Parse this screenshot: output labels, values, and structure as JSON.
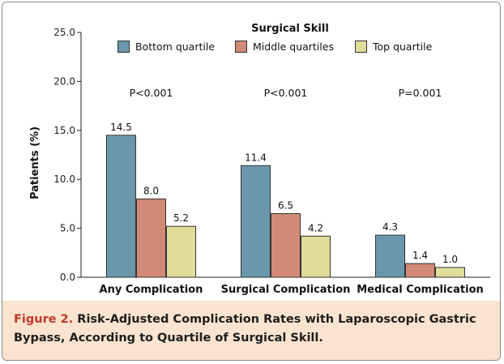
{
  "chart_data": {
    "type": "bar",
    "ylabel": "Patients (%)",
    "ylim": [
      0,
      25
    ],
    "yticks": [
      "0.0",
      "5.0",
      "10.0",
      "15.0",
      "20.0",
      "25.0"
    ],
    "ytick_values": [
      0,
      5,
      10,
      15,
      20,
      25
    ],
    "categories": [
      "Any Complication",
      "Surgical Complication",
      "Medical Complication"
    ],
    "p_values": [
      "P<0.001",
      "P<0.001",
      "P=0.001"
    ],
    "legend_title": "Surgical Skill",
    "legend_position": "top-center",
    "grid": false,
    "series": [
      {
        "name": "Bottom quartile",
        "color": "#6a97ab",
        "values": [
          14.5,
          11.4,
          4.3
        ],
        "labels": [
          "14.5",
          "11.4",
          "4.3"
        ]
      },
      {
        "name": "Middle quartiles",
        "color": "#d08a76",
        "values": [
          8.0,
          6.5,
          1.4
        ],
        "labels": [
          "8.0",
          "6.5",
          "1.4"
        ]
      },
      {
        "name": "Top quartile",
        "color": "#e0dc9a",
        "values": [
          5.2,
          4.2,
          1.0
        ],
        "labels": [
          "5.2",
          "4.2",
          "1.0"
        ]
      }
    ]
  },
  "caption": {
    "figure_label": "Figure 2.",
    "text": "Risk-Adjusted Complication Rates with Laparoscopic Gastric Bypass, According to Quartile of Surgical Skill."
  }
}
